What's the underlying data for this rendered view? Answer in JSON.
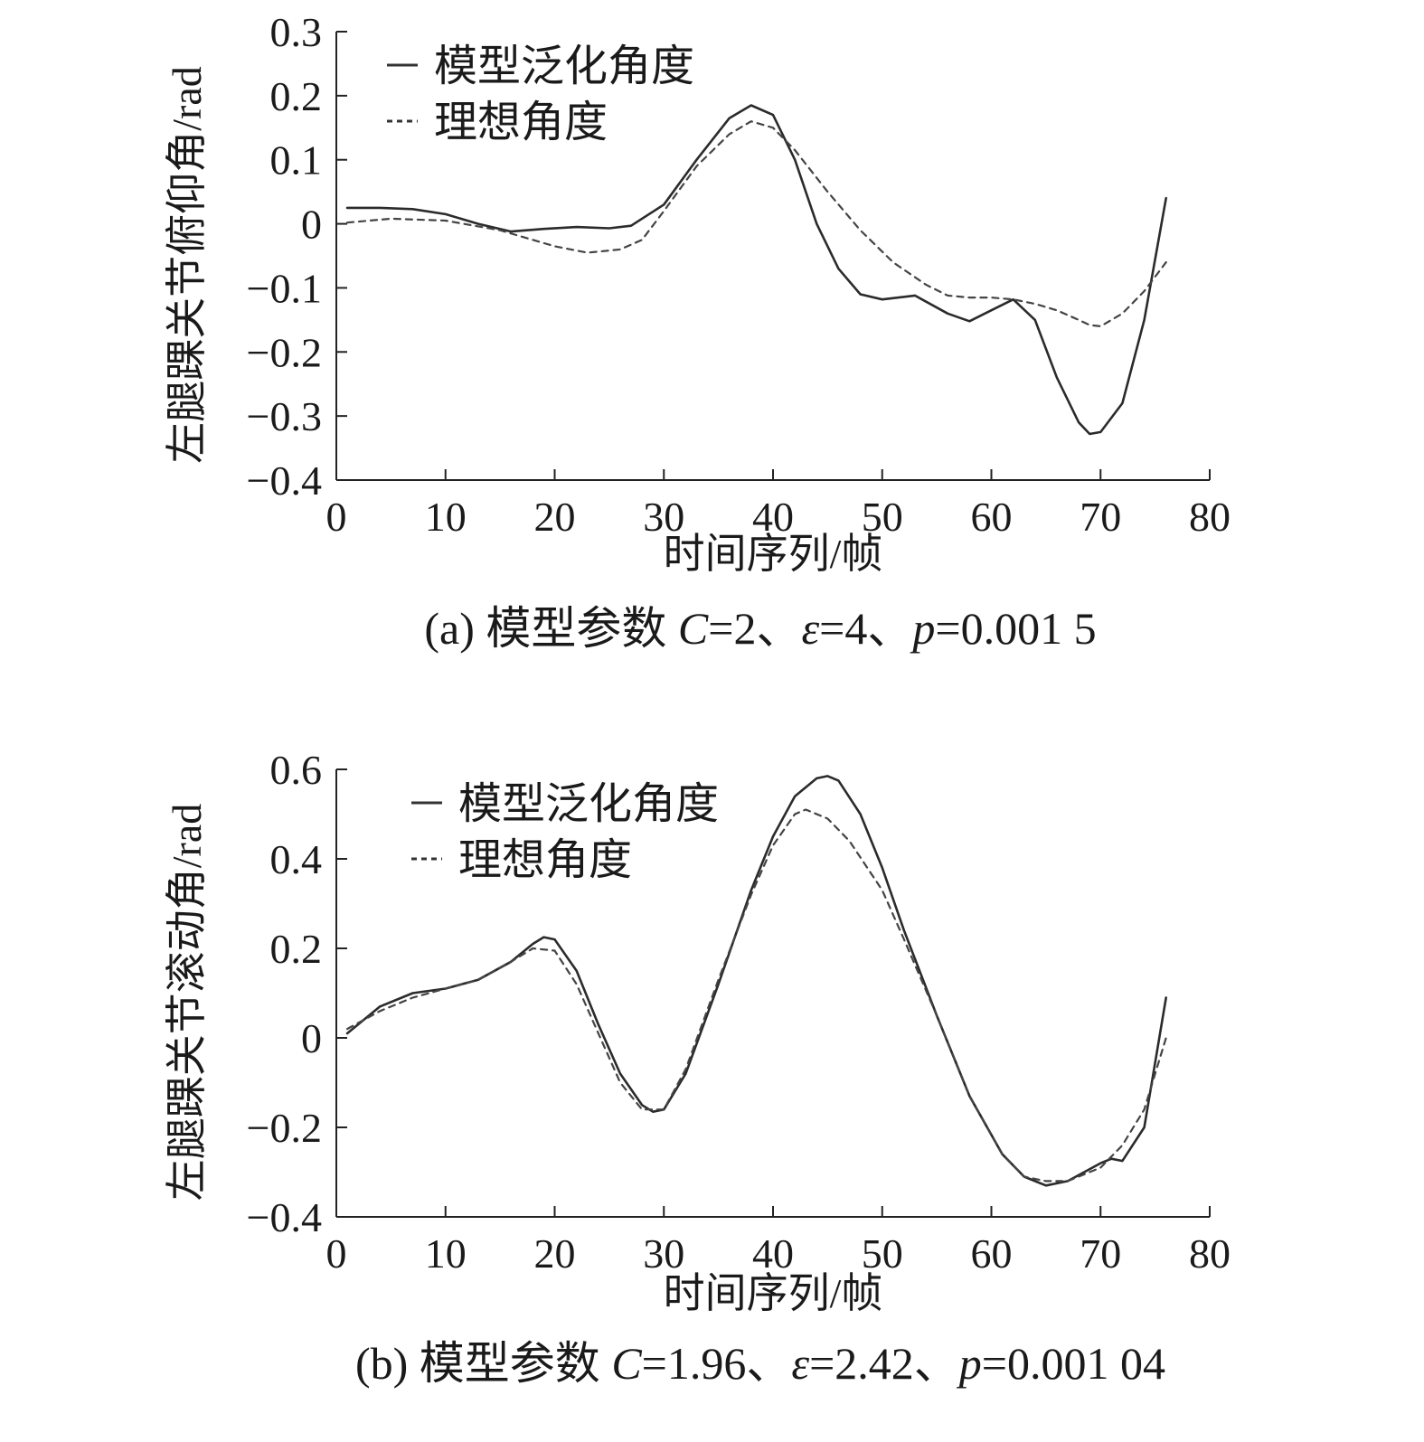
{
  "chart_data": [
    {
      "type": "line",
      "caption": {
        "prefix": "(a) 模型参数 ",
        "params": [
          {
            "sym": "C",
            "eq": "=2"
          },
          {
            "sep": "、",
            "sym": "ε",
            "eq": "=4"
          },
          {
            "sep": "、",
            "sym": "p",
            "eq": "=0.001 5"
          }
        ]
      },
      "xlabel": "时间序列/帧",
      "ylabel": "左腿踝关节俯仰角/rad",
      "xlim": [
        0,
        80
      ],
      "ylim": [
        -0.4,
        0.3
      ],
      "xticks": [
        0,
        10,
        20,
        30,
        40,
        50,
        60,
        70,
        80
      ],
      "xtick_labels": [
        "0",
        "10",
        "20",
        "30",
        "40",
        "50",
        "60",
        "70",
        "80"
      ],
      "yticks": [
        0.3,
        0.2,
        0.1,
        0,
        -0.1,
        -0.2,
        -0.3,
        -0.4
      ],
      "ytick_labels": [
        "0.3",
        "0.2",
        "0.1",
        "0",
        "−0.1",
        "−0.2",
        "−0.3",
        "−0.4"
      ],
      "legend_position": "top-left",
      "series": [
        {
          "name": "模型泛化角度",
          "style": "solid",
          "x": [
            1,
            4,
            7,
            10,
            13,
            16,
            19,
            22,
            25,
            27,
            30,
            33,
            36,
            38,
            40,
            42,
            44,
            46,
            48,
            50,
            53,
            56,
            58,
            60,
            62,
            64,
            66,
            68,
            69,
            70,
            72,
            74,
            76
          ],
          "values": [
            0.025,
            0.025,
            0.023,
            0.015,
            0.0,
            -0.012,
            -0.008,
            -0.005,
            -0.007,
            -0.003,
            0.03,
            0.1,
            0.165,
            0.185,
            0.17,
            0.1,
            0.0,
            -0.07,
            -0.11,
            -0.118,
            -0.112,
            -0.14,
            -0.152,
            -0.135,
            -0.118,
            -0.15,
            -0.24,
            -0.31,
            -0.328,
            -0.325,
            -0.28,
            -0.15,
            0.04
          ]
        },
        {
          "name": "理想角度",
          "style": "dashed",
          "x": [
            1,
            5,
            10,
            15,
            20,
            23,
            26,
            28,
            30,
            33,
            36,
            38,
            40,
            42,
            45,
            48,
            51,
            54,
            56,
            58,
            60,
            62,
            64,
            66,
            68,
            69,
            70,
            72,
            74,
            76
          ],
          "values": [
            0.002,
            0.008,
            0.005,
            -0.01,
            -0.035,
            -0.045,
            -0.04,
            -0.025,
            0.02,
            0.09,
            0.14,
            0.16,
            0.15,
            0.115,
            0.05,
            -0.01,
            -0.06,
            -0.095,
            -0.112,
            -0.115,
            -0.115,
            -0.118,
            -0.125,
            -0.135,
            -0.15,
            -0.158,
            -0.16,
            -0.14,
            -0.105,
            -0.06
          ]
        }
      ]
    },
    {
      "type": "line",
      "caption": {
        "prefix": "(b) 模型参数 ",
        "params": [
          {
            "sym": "C",
            "eq": "=1.96"
          },
          {
            "sep": "、",
            "sym": "ε",
            "eq": "=2.42"
          },
          {
            "sep": "、",
            "sym": "p",
            "eq": "=0.001 04"
          }
        ]
      },
      "xlabel": "时间序列/帧",
      "ylabel": "左腿踝关节滚动角/rad",
      "xlim": [
        0,
        80
      ],
      "ylim": [
        -0.4,
        0.6
      ],
      "xticks": [
        0,
        10,
        20,
        30,
        40,
        50,
        60,
        70,
        80
      ],
      "xtick_labels": [
        "0",
        "10",
        "20",
        "30",
        "40",
        "50",
        "60",
        "70",
        "80"
      ],
      "yticks": [
        0.6,
        0.4,
        0.2,
        0,
        -0.2,
        -0.4
      ],
      "ytick_labels": [
        "0.6",
        "0.4",
        "0.2",
        "0",
        "−0.2",
        "−0.4"
      ],
      "legend_position": "top-left",
      "series": [
        {
          "name": "模型泛化角度",
          "style": "solid",
          "x": [
            1,
            4,
            7,
            10,
            13,
            16,
            18,
            19,
            20,
            22,
            24,
            26,
            28,
            29,
            30,
            32,
            35,
            38,
            40,
            42,
            44,
            45,
            46,
            48,
            50,
            52,
            55,
            58,
            61,
            63,
            65,
            67,
            70,
            71,
            72,
            74,
            76
          ],
          "values": [
            0.01,
            0.07,
            0.1,
            0.11,
            0.13,
            0.17,
            0.21,
            0.225,
            0.22,
            0.15,
            0.03,
            -0.08,
            -0.15,
            -0.165,
            -0.16,
            -0.08,
            0.12,
            0.33,
            0.45,
            0.54,
            0.58,
            0.585,
            0.575,
            0.5,
            0.38,
            0.24,
            0.05,
            -0.13,
            -0.26,
            -0.31,
            -0.33,
            -0.32,
            -0.28,
            -0.27,
            -0.275,
            -0.2,
            0.09
          ]
        },
        {
          "name": "理想角度",
          "style": "dashed",
          "x": [
            1,
            4,
            7,
            10,
            13,
            16,
            18,
            20,
            22,
            24,
            26,
            28,
            30,
            32,
            35,
            38,
            40,
            42,
            43,
            45,
            47,
            50,
            52,
            55,
            58,
            61,
            63,
            65,
            67,
            70,
            72,
            74,
            76
          ],
          "values": [
            0.02,
            0.06,
            0.09,
            0.11,
            0.13,
            0.17,
            0.2,
            0.195,
            0.12,
            0.01,
            -0.1,
            -0.16,
            -0.16,
            -0.07,
            0.13,
            0.32,
            0.43,
            0.5,
            0.51,
            0.49,
            0.44,
            0.33,
            0.22,
            0.05,
            -0.13,
            -0.26,
            -0.31,
            -0.32,
            -0.32,
            -0.29,
            -0.24,
            -0.16,
            0.0
          ]
        }
      ]
    }
  ]
}
